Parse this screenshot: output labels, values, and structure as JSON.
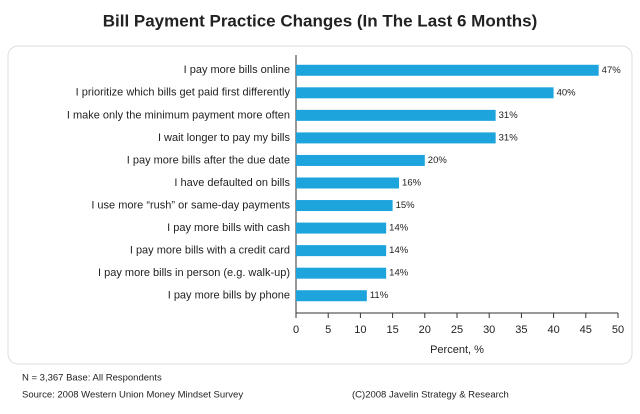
{
  "chart_data": {
    "type": "hbar",
    "title": "Bill Payment Practice Changes (In The Last 6 Months)",
    "categories": [
      "I pay more bills online",
      "I prioritize which bills get paid first differently",
      "I make only the minimum payment more often",
      "I wait longer to pay my bills",
      "I pay more bills after the due date",
      "I have defaulted on bills",
      "I use more “rush” or same-day payments",
      "I pay more bills with cash",
      "I pay more bills with a credit card",
      "I pay more bills in person (e.g. walk-up)",
      "I pay more bills by phone"
    ],
    "values": [
      47,
      40,
      31,
      31,
      20,
      16,
      15,
      14,
      14,
      14,
      11
    ],
    "value_labels": [
      "47%",
      "40%",
      "31%",
      "31%",
      "20%",
      "16%",
      "15%",
      "14%",
      "14%",
      "14%",
      "11%"
    ],
    "color": "#1ea4dc",
    "x_label": "Percent, %",
    "xlim": [
      0,
      50
    ],
    "xticks": [
      0,
      5,
      10,
      15,
      20,
      25,
      30,
      35,
      40,
      45,
      50
    ],
    "note": "N = 3,367  Base: All Respondents",
    "source": "Source: 2008 Western Union Money Mindset Survey",
    "credit": "(C)2008 Javelin Strategy & Research"
  }
}
